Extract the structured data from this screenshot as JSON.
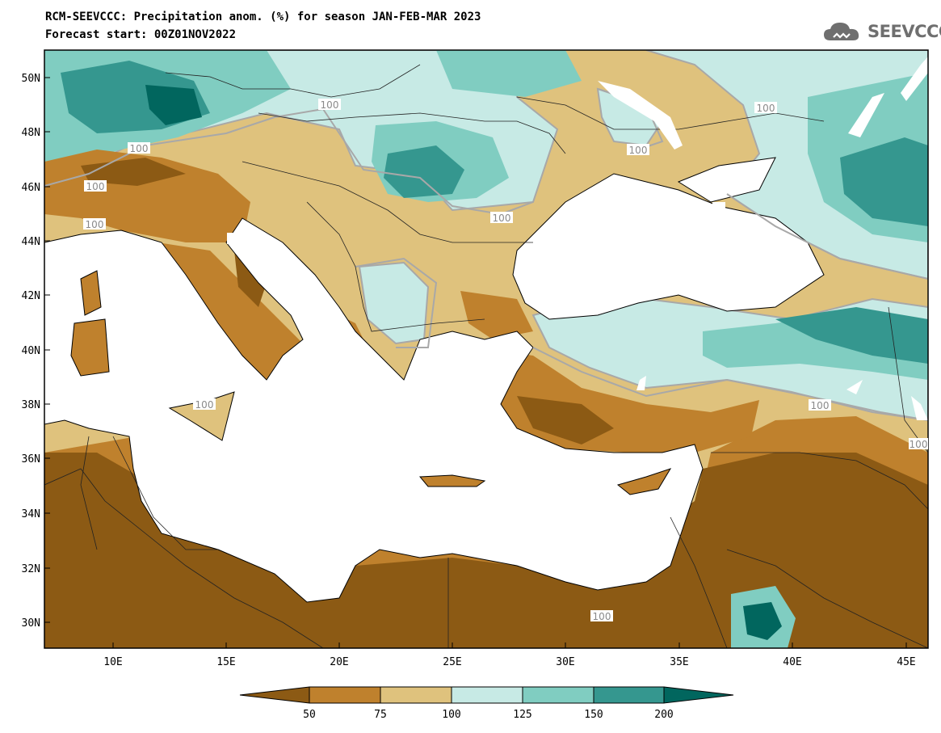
{
  "header": {
    "title": "RCM-SEEVCCC: Precipitation anom. (%) for season JAN-FEB-MAR 2023",
    "subtitle": "Forecast start: 00Z01NOV2022"
  },
  "logo": {
    "text": "SEEVCCC",
    "icon": "cloud-icon"
  },
  "map": {
    "lat_labels": [
      "50N",
      "48N",
      "46N",
      "44N",
      "42N",
      "40N",
      "38N",
      "36N",
      "34N",
      "32N",
      "30N"
    ],
    "lon_labels": [
      "10E",
      "15E",
      "20E",
      "25E",
      "30E",
      "35E",
      "40E",
      "45E"
    ],
    "contour_labels": [
      "100",
      "100",
      "100",
      "100",
      "100",
      "100",
      "100",
      "100",
      "100",
      "100",
      "100",
      "100",
      "100"
    ]
  },
  "legend": {
    "labels": [
      "50",
      "75",
      "100",
      "125",
      "150",
      "200"
    ],
    "colors": [
      "#8c5a14",
      "#bf812d",
      "#dfc27d",
      "#c7eae5",
      "#80cdc1",
      "#35978f",
      "#01665e"
    ]
  }
}
